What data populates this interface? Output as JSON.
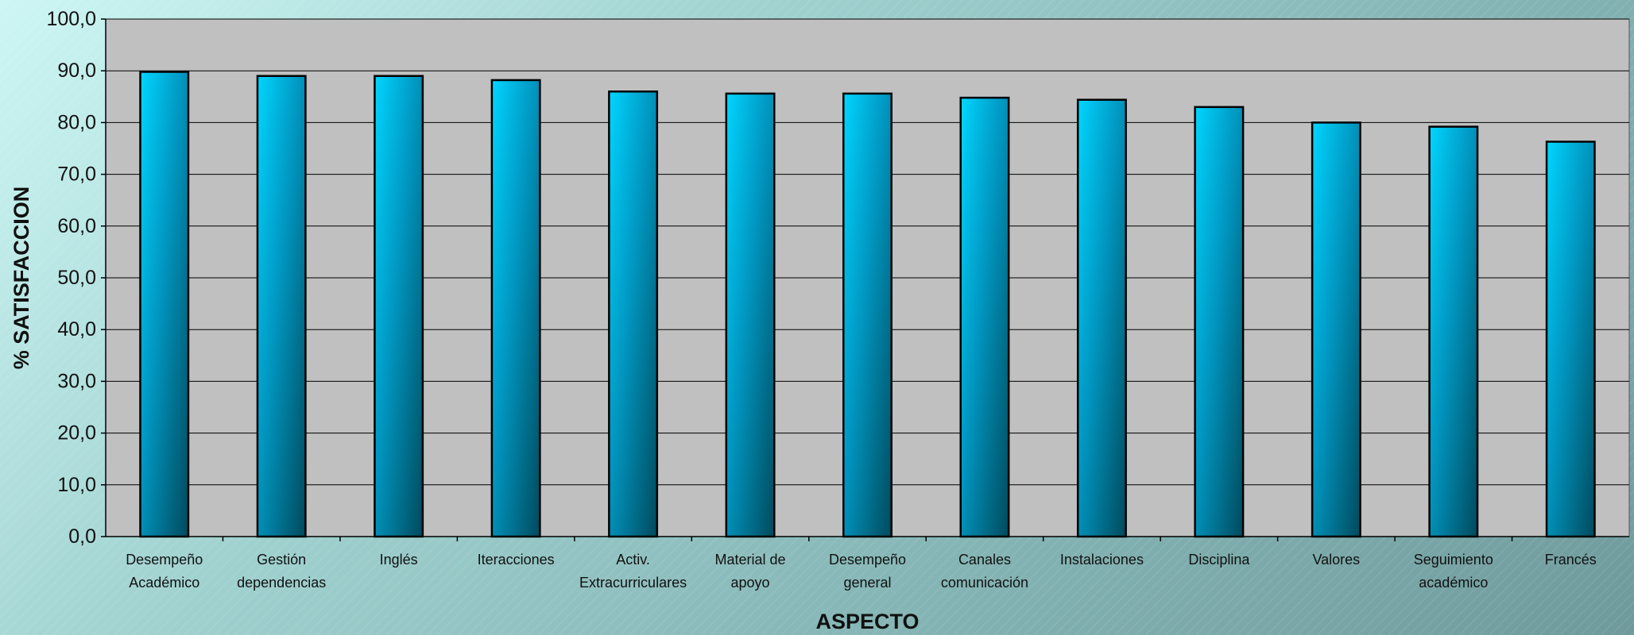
{
  "chart_data": {
    "type": "bar",
    "categories": [
      [
        "Desempeño",
        "Académico"
      ],
      [
        "Gestión",
        "dependencias"
      ],
      [
        "Inglés"
      ],
      [
        "Iteracciones"
      ],
      [
        "Activ.",
        "Extracurriculares"
      ],
      [
        "Material de",
        "apoyo"
      ],
      [
        "Desempeño",
        "general"
      ],
      [
        "Canales",
        "comunicación"
      ],
      [
        "Instalaciones"
      ],
      [
        "Disciplina"
      ],
      [
        "Valores"
      ],
      [
        "Seguimiento",
        "académico"
      ],
      [
        "Francés"
      ]
    ],
    "values": [
      89.8,
      89.0,
      89.0,
      88.2,
      86.0,
      85.6,
      85.6,
      84.8,
      84.4,
      83.0,
      80.0,
      79.2,
      76.3
    ],
    "ylabel": "% SATISFACCION",
    "xlabel": "ASPECTO",
    "ylim": [
      0,
      100
    ],
    "yticks": [
      "0,0",
      "10,0",
      "20,0",
      "30,0",
      "40,0",
      "50,0",
      "60,0",
      "70,0",
      "80,0",
      "90,0",
      "100,0"
    ],
    "grid": true,
    "colors": {
      "bar_light": "#00d6ff",
      "bar_dark": "#004a5c",
      "bar_outline": "#000000",
      "plot_bg": "#c0c0c0",
      "gridline": "#000000"
    }
  }
}
